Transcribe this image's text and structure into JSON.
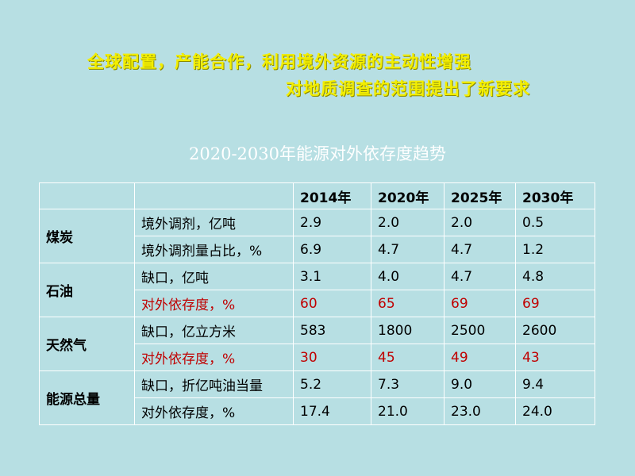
{
  "headline": {
    "line1": "全球配置，产能合作，利用境外资源的主动性增强",
    "line2": "对地质调查的范围提出了新要求"
  },
  "table": {
    "title": "2020-2030年能源对外依存度趋势",
    "years": [
      "2014年",
      "2020年",
      "2025年",
      "2030年"
    ],
    "groups": [
      {
        "category": "煤炭",
        "rows": [
          {
            "label": "境外调剂，亿吨",
            "values": [
              "2.9",
              "2.0",
              "2.0",
              "0.5"
            ]
          },
          {
            "label": "境外调剂量占比，%",
            "values": [
              "6.9",
              "4.7",
              "4.7",
              "1.2"
            ]
          }
        ]
      },
      {
        "category": "石油",
        "rows": [
          {
            "label": "缺口，亿吨",
            "values": [
              "3.1",
              "4.0",
              "4.7",
              "4.8"
            ]
          },
          {
            "label": "对外依存度，%",
            "values": [
              "60",
              "65",
              "69",
              "69"
            ]
          }
        ]
      },
      {
        "category": "天然气",
        "rows": [
          {
            "label": "缺口，亿立方米",
            "values": [
              "583",
              "1800",
              "2500",
              "2600"
            ]
          },
          {
            "label": "对外依存度，%",
            "values": [
              "30",
              "45",
              "49",
              "43"
            ]
          }
        ]
      },
      {
        "category": "能源总量",
        "rows": [
          {
            "label": "缺口，折亿吨油当量",
            "values": [
              "5.2",
              "7.3",
              "9.0",
              "9.4"
            ]
          },
          {
            "label": "对外依存度，%",
            "values": [
              "17.4",
              "21.0",
              "23.0",
              "24.0"
            ]
          }
        ]
      }
    ],
    "colors": {
      "background": "#b7dfe3",
      "headline": "#f3ee00",
      "highlight_row_text": "#c00000",
      "title": "#ffffff"
    }
  }
}
